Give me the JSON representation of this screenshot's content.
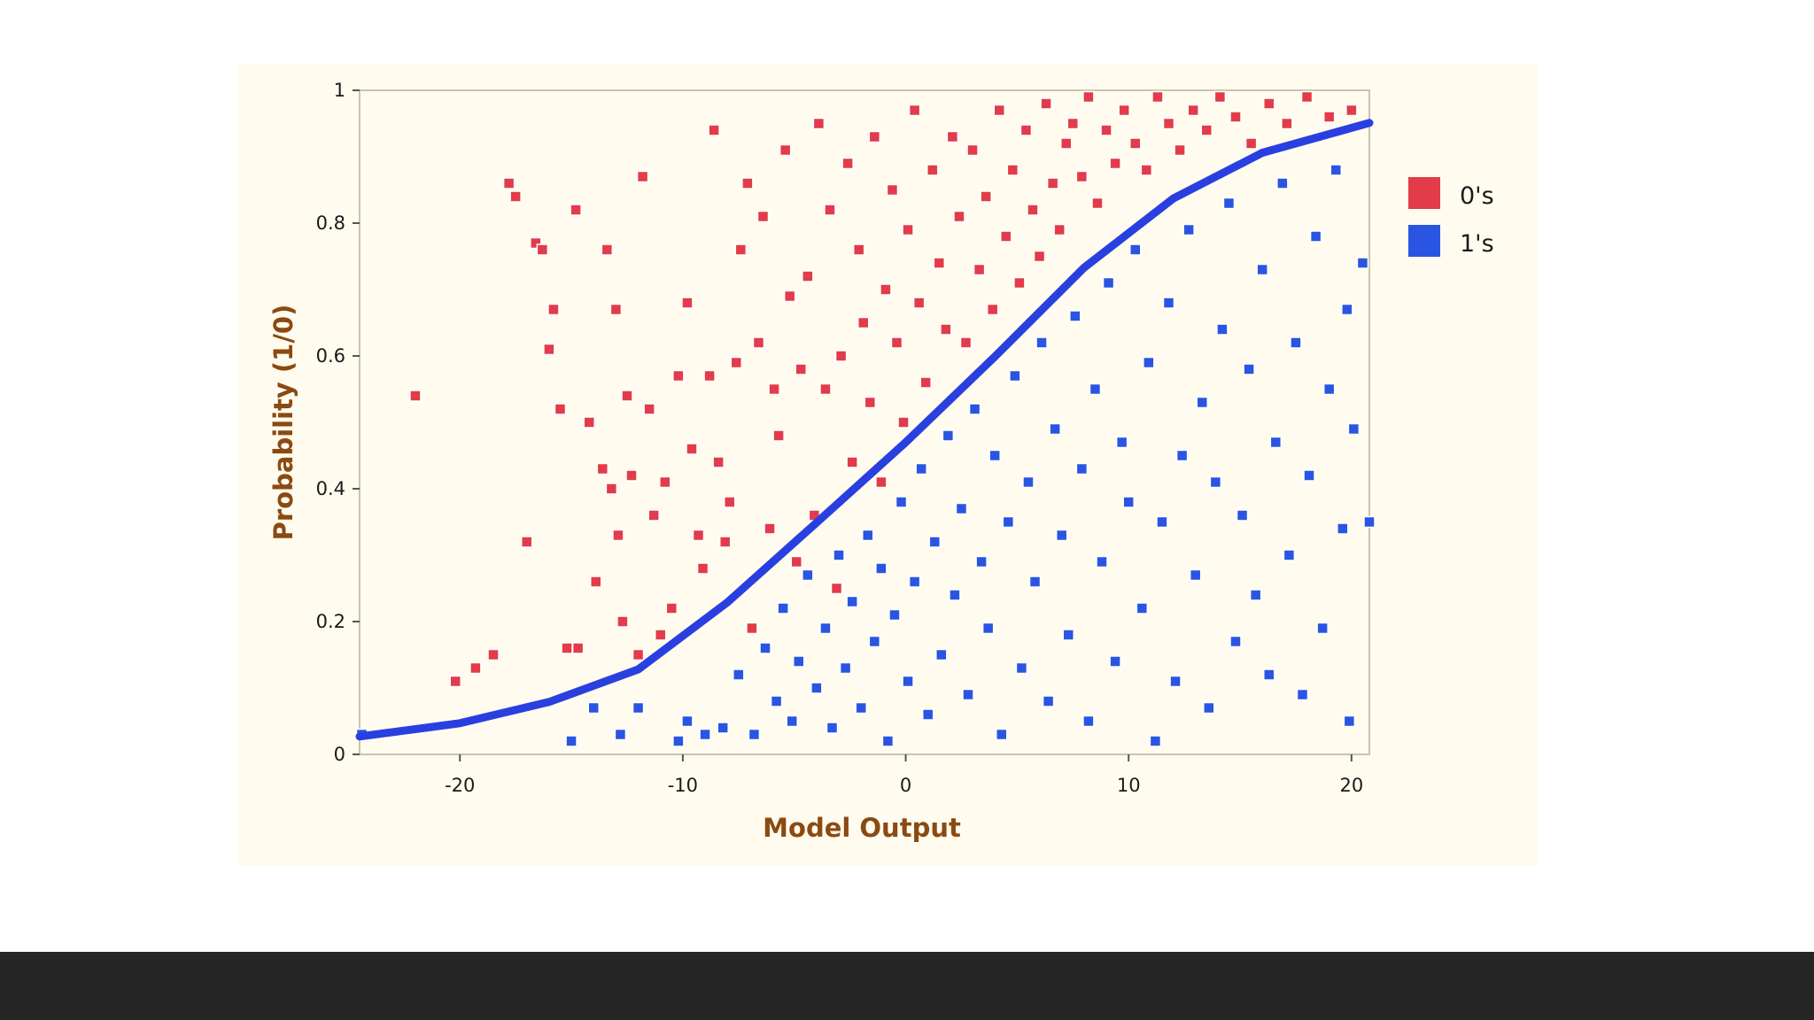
{
  "chart_data": {
    "type": "scatter",
    "xlabel": "Model Output",
    "ylabel": "Probability (1/0)",
    "xlim": [
      -24.5,
      20.8
    ],
    "ylim": [
      0,
      1
    ],
    "x_ticks": [
      -20,
      -10,
      0,
      10,
      20
    ],
    "y_ticks": [
      0,
      0.2,
      0.4,
      0.6,
      0.8,
      1
    ],
    "x_tick_labels": [
      "-20",
      "-10",
      "0",
      "10",
      "20"
    ],
    "y_tick_labels": [
      "0",
      "0.2",
      "0.4",
      "0.6",
      "0.8",
      "1"
    ],
    "grid": false,
    "legend_position": "right",
    "legend": [
      "0's",
      "1's"
    ],
    "curve": {
      "type": "logistic",
      "color": "#2a3fe0",
      "points": [
        [
          -24.5,
          0.027
        ],
        [
          -20,
          0.047
        ],
        [
          -16,
          0.079
        ],
        [
          -12,
          0.128
        ],
        [
          -8,
          0.229
        ],
        [
          -4,
          0.349
        ],
        [
          0,
          0.47
        ],
        [
          4,
          0.599
        ],
        [
          8,
          0.733
        ],
        [
          12,
          0.837
        ],
        [
          16,
          0.906
        ],
        [
          20.8,
          0.951
        ]
      ]
    },
    "series": [
      {
        "name": "0's",
        "color": "#e23b4a",
        "points": [
          [
            -22,
            0.54
          ],
          [
            -20.2,
            0.11
          ],
          [
            -19.3,
            0.13
          ],
          [
            -18.5,
            0.15
          ],
          [
            -17.8,
            0.86
          ],
          [
            -17.5,
            0.84
          ],
          [
            -17,
            0.32
          ],
          [
            -16.6,
            0.77
          ],
          [
            -16.3,
            0.76
          ],
          [
            -16,
            0.61
          ],
          [
            -15.8,
            0.67
          ],
          [
            -15.5,
            0.52
          ],
          [
            -15.2,
            0.16
          ],
          [
            -14.8,
            0.82
          ],
          [
            -14.7,
            0.16
          ],
          [
            -14.2,
            0.5
          ],
          [
            -13.9,
            0.26
          ],
          [
            -13.6,
            0.43
          ],
          [
            -13.4,
            0.76
          ],
          [
            -13.2,
            0.4
          ],
          [
            -13,
            0.67
          ],
          [
            -12.9,
            0.33
          ],
          [
            -12.7,
            0.2
          ],
          [
            -12.5,
            0.54
          ],
          [
            -12.3,
            0.42
          ],
          [
            -12,
            0.15
          ],
          [
            -11.8,
            0.87
          ],
          [
            -11.5,
            0.52
          ],
          [
            -11.3,
            0.36
          ],
          [
            -11,
            0.18
          ],
          [
            -10.8,
            0.41
          ],
          [
            -10.5,
            0.22
          ],
          [
            -10.2,
            0.57
          ],
          [
            -9.8,
            0.68
          ],
          [
            -9.6,
            0.46
          ],
          [
            -9.3,
            0.33
          ],
          [
            -9.1,
            0.28
          ],
          [
            -8.8,
            0.57
          ],
          [
            -8.6,
            0.94
          ],
          [
            -8.4,
            0.44
          ],
          [
            -8.1,
            0.32
          ],
          [
            -7.9,
            0.38
          ],
          [
            -7.6,
            0.59
          ],
          [
            -7.4,
            0.76
          ],
          [
            -7.1,
            0.86
          ],
          [
            -6.9,
            0.19
          ],
          [
            -6.6,
            0.62
          ],
          [
            -6.4,
            0.81
          ],
          [
            -6.1,
            0.34
          ],
          [
            -5.9,
            0.55
          ],
          [
            -5.7,
            0.48
          ],
          [
            -5.4,
            0.91
          ],
          [
            -5.2,
            0.69
          ],
          [
            -4.9,
            0.29
          ],
          [
            -4.7,
            0.58
          ],
          [
            -4.4,
            0.72
          ],
          [
            -4.1,
            0.36
          ],
          [
            -3.9,
            0.95
          ],
          [
            -3.6,
            0.55
          ],
          [
            -3.4,
            0.82
          ],
          [
            -3.1,
            0.25
          ],
          [
            -2.9,
            0.6
          ],
          [
            -2.6,
            0.89
          ],
          [
            -2.4,
            0.44
          ],
          [
            -2.1,
            0.76
          ],
          [
            -1.9,
            0.65
          ],
          [
            -1.6,
            0.53
          ],
          [
            -1.4,
            0.93
          ],
          [
            -1.1,
            0.41
          ],
          [
            -0.9,
            0.7
          ],
          [
            -0.6,
            0.85
          ],
          [
            -0.4,
            0.62
          ],
          [
            -0.1,
            0.5
          ],
          [
            0.1,
            0.79
          ],
          [
            0.4,
            0.97
          ],
          [
            0.6,
            0.68
          ],
          [
            0.9,
            0.56
          ],
          [
            1.2,
            0.88
          ],
          [
            1.5,
            0.74
          ],
          [
            1.8,
            0.64
          ],
          [
            2.1,
            0.93
          ],
          [
            2.4,
            0.81
          ],
          [
            2.7,
            0.62
          ],
          [
            3,
            0.91
          ],
          [
            3.3,
            0.73
          ],
          [
            3.6,
            0.84
          ],
          [
            3.9,
            0.67
          ],
          [
            4.2,
            0.97
          ],
          [
            4.5,
            0.78
          ],
          [
            4.8,
            0.88
          ],
          [
            5.1,
            0.71
          ],
          [
            5.4,
            0.94
          ],
          [
            5.7,
            0.82
          ],
          [
            6,
            0.75
          ],
          [
            6.3,
            0.98
          ],
          [
            6.6,
            0.86
          ],
          [
            6.9,
            0.79
          ],
          [
            7.2,
            0.92
          ],
          [
            7.5,
            0.95
          ],
          [
            7.9,
            0.87
          ],
          [
            8.2,
            0.99
          ],
          [
            8.6,
            0.83
          ],
          [
            9,
            0.94
          ],
          [
            9.4,
            0.89
          ],
          [
            9.8,
            0.97
          ],
          [
            10.3,
            0.92
          ],
          [
            10.8,
            0.88
          ],
          [
            11.3,
            0.99
          ],
          [
            11.8,
            0.95
          ],
          [
            12.3,
            0.91
          ],
          [
            12.9,
            0.97
          ],
          [
            13.5,
            0.94
          ],
          [
            14.1,
            0.99
          ],
          [
            14.8,
            0.96
          ],
          [
            15.5,
            0.92
          ],
          [
            16.3,
            0.98
          ],
          [
            17.1,
            0.95
          ],
          [
            18,
            0.99
          ],
          [
            19,
            0.96
          ],
          [
            20,
            0.97
          ]
        ]
      },
      {
        "name": "1's",
        "color": "#2a55e2",
        "points": [
          [
            -24.4,
            0.03
          ],
          [
            -15,
            0.02
          ],
          [
            -14,
            0.07
          ],
          [
            -12.8,
            0.03
          ],
          [
            -12,
            0.07
          ],
          [
            -10.2,
            0.02
          ],
          [
            -9.8,
            0.05
          ],
          [
            -9,
            0.03
          ],
          [
            -8.2,
            0.04
          ],
          [
            -7.5,
            0.12
          ],
          [
            -6.8,
            0.03
          ],
          [
            -6.3,
            0.16
          ],
          [
            -5.8,
            0.08
          ],
          [
            -5.5,
            0.22
          ],
          [
            -5.1,
            0.05
          ],
          [
            -4.8,
            0.14
          ],
          [
            -4.4,
            0.27
          ],
          [
            -4,
            0.1
          ],
          [
            -3.6,
            0.19
          ],
          [
            -3.3,
            0.04
          ],
          [
            -3,
            0.3
          ],
          [
            -2.7,
            0.13
          ],
          [
            -2.4,
            0.23
          ],
          [
            -2,
            0.07
          ],
          [
            -1.7,
            0.33
          ],
          [
            -1.4,
            0.17
          ],
          [
            -1.1,
            0.28
          ],
          [
            -0.8,
            0.02
          ],
          [
            -0.5,
            0.21
          ],
          [
            -0.2,
            0.38
          ],
          [
            0.1,
            0.11
          ],
          [
            0.4,
            0.26
          ],
          [
            0.7,
            0.43
          ],
          [
            1,
            0.06
          ],
          [
            1.3,
            0.32
          ],
          [
            1.6,
            0.15
          ],
          [
            1.9,
            0.48
          ],
          [
            2.2,
            0.24
          ],
          [
            2.5,
            0.37
          ],
          [
            2.8,
            0.09
          ],
          [
            3.1,
            0.52
          ],
          [
            3.4,
            0.29
          ],
          [
            3.7,
            0.19
          ],
          [
            4,
            0.45
          ],
          [
            4.3,
            0.03
          ],
          [
            4.6,
            0.35
          ],
          [
            4.9,
            0.57
          ],
          [
            5.2,
            0.13
          ],
          [
            5.5,
            0.41
          ],
          [
            5.8,
            0.26
          ],
          [
            6.1,
            0.62
          ],
          [
            6.4,
            0.08
          ],
          [
            6.7,
            0.49
          ],
          [
            7,
            0.33
          ],
          [
            7.3,
            0.18
          ],
          [
            7.6,
            0.66
          ],
          [
            7.9,
            0.43
          ],
          [
            8.2,
            0.05
          ],
          [
            8.5,
            0.55
          ],
          [
            8.8,
            0.29
          ],
          [
            9.1,
            0.71
          ],
          [
            9.4,
            0.14
          ],
          [
            9.7,
            0.47
          ],
          [
            10,
            0.38
          ],
          [
            10.3,
            0.76
          ],
          [
            10.6,
            0.22
          ],
          [
            10.9,
            0.59
          ],
          [
            11.2,
            0.02
          ],
          [
            11.5,
            0.35
          ],
          [
            11.8,
            0.68
          ],
          [
            12.1,
            0.11
          ],
          [
            12.4,
            0.45
          ],
          [
            12.7,
            0.79
          ],
          [
            13,
            0.27
          ],
          [
            13.3,
            0.53
          ],
          [
            13.6,
            0.07
          ],
          [
            13.9,
            0.41
          ],
          [
            14.2,
            0.64
          ],
          [
            14.5,
            0.83
          ],
          [
            14.8,
            0.17
          ],
          [
            15.1,
            0.36
          ],
          [
            15.4,
            0.58
          ],
          [
            15.7,
            0.24
          ],
          [
            16,
            0.73
          ],
          [
            16.3,
            0.12
          ],
          [
            16.6,
            0.47
          ],
          [
            16.9,
            0.86
          ],
          [
            17.2,
            0.3
          ],
          [
            17.5,
            0.62
          ],
          [
            17.8,
            0.09
          ],
          [
            18.1,
            0.42
          ],
          [
            18.4,
            0.78
          ],
          [
            18.7,
            0.19
          ],
          [
            19,
            0.55
          ],
          [
            19.3,
            0.88
          ],
          [
            19.6,
            0.34
          ],
          [
            19.8,
            0.67
          ],
          [
            19.9,
            0.05
          ],
          [
            20.1,
            0.49
          ],
          [
            20.5,
            0.74
          ],
          [
            20.8,
            0.35
          ]
        ]
      }
    ]
  }
}
